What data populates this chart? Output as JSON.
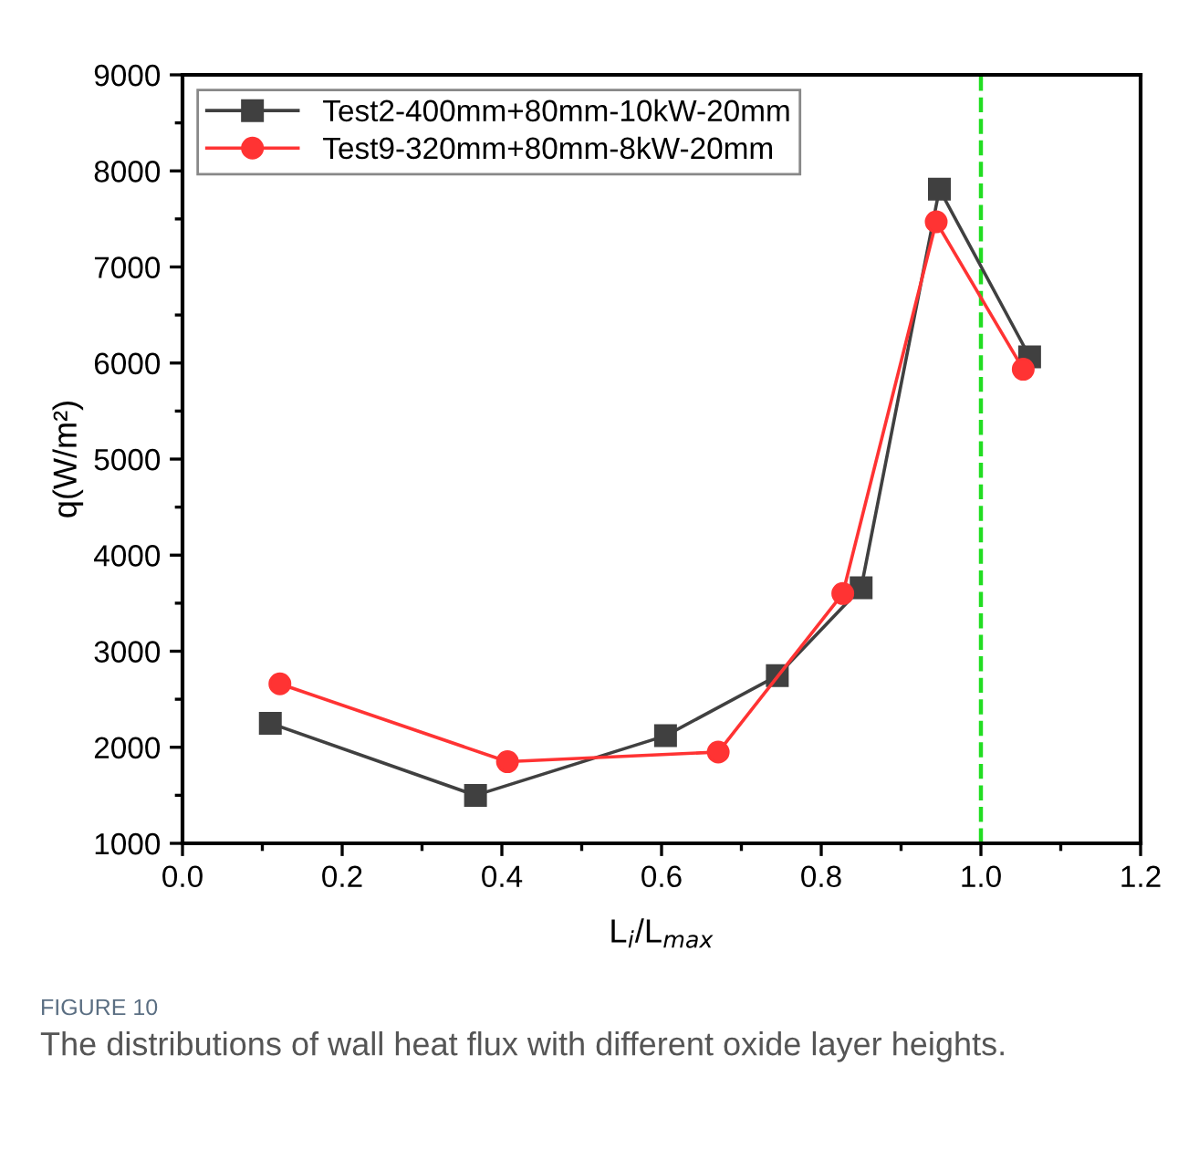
{
  "chart_data": {
    "type": "line",
    "xlabel": "L$_{i}$/L$_{max}$",
    "ylabel": "q(W/m²)",
    "xlim": [
      0,
      1.2
    ],
    "xticks": [
      {
        "value": 0,
        "label": "0.0"
      },
      0.2,
      0.4,
      0.6,
      0.8,
      {
        "value": 1,
        "label": "1.0"
      },
      1.2
    ],
    "ylim": [
      1000,
      9000
    ],
    "yticks": [
      1000,
      2000,
      3000,
      4000,
      5000,
      6000,
      7000,
      8000,
      9000
    ],
    "series": [
      {
        "name": "Test2-400mm+80mm-10kW-20mm",
        "color": "#404040",
        "marker": "square",
        "x": [
          0.11,
          0.367,
          0.605,
          0.745,
          0.85,
          0.948,
          1.061
        ],
        "values": [
          2250,
          1500,
          2120,
          2745,
          3660,
          7810,
          6065
        ]
      },
      {
        "name": "Test9-320mm+80mm-8kW-20mm",
        "color": "#ff3333",
        "marker": "circle",
        "x": [
          0.122,
          0.407,
          0.671,
          0.827,
          0.944,
          1.053
        ],
        "values": [
          2660,
          1850,
          1950,
          3600,
          7470,
          5935
        ]
      }
    ],
    "ref_lines": [
      {
        "axis": "x",
        "value": 1.0,
        "color": "#22dd22",
        "line_style": "dashed"
      }
    ],
    "legend": "top left",
    "grid": false,
    "annotations": [
      "FIGURE 10",
      "The distributions of wall heat flux with different oxide layer heights."
    ]
  }
}
